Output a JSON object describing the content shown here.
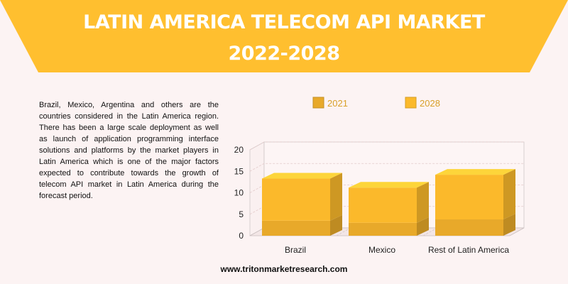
{
  "header": {
    "title_line1": "LATIN AMERICA TELECOM API MARKET",
    "title_line2": "2022-2028",
    "banner_color": "#ffbf2f"
  },
  "description": "Brazil, Mexico, Argentina and others are the countries considered in the Latin America region. There has been a large scale deployment as well as launch of application programming interface solutions and platforms by the market players in Latin America which is one of the major factors expected to contribute towards the growth of telecom API market in Latin America during the forecast period.",
  "footer": {
    "url": "www.tritonmarketresearch.com"
  },
  "chart_data": {
    "type": "bar",
    "stacked": true,
    "three_d": true,
    "categories": [
      "Brazil",
      "Mexico",
      "Rest of Latin America"
    ],
    "series": [
      {
        "name": "2021",
        "values": [
          3.5,
          3.0,
          3.8
        ],
        "color": "#e8a92a"
      },
      {
        "name": "2028",
        "values": [
          9.8,
          8.2,
          10.4
        ],
        "color": "#fbb92b"
      }
    ],
    "y_ticks": [
      "0",
      "5",
      "10",
      "15",
      "20"
    ],
    "ylim": [
      0,
      20
    ],
    "grid": true,
    "legend_position": "top"
  }
}
